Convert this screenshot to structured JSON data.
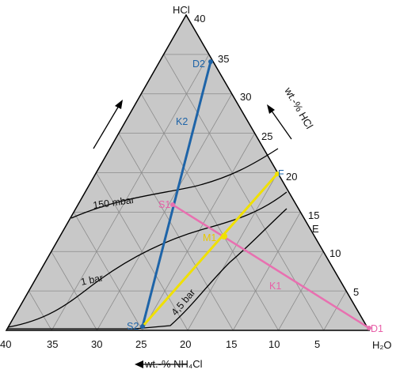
{
  "apex_label": "HCl",
  "corner_label": "H₂O",
  "hcl_axis_label": "wt.-% HCl",
  "nh4cl_axis_label": "wt.-% NH₄Cl",
  "hcl_ticks": [
    "40",
    "35",
    "30",
    "25",
    "20",
    "15",
    "10",
    "5"
  ],
  "nh4cl_ticks": [
    "40",
    "35",
    "30",
    "25",
    "20",
    "15",
    "10",
    "5"
  ],
  "points": {
    "D2": "D2",
    "S2": "S2",
    "F": "F",
    "S1": "S1",
    "M1": "M1",
    "D1": "D1",
    "E": "E"
  },
  "lines": {
    "K1": "K1",
    "K2": "K2"
  },
  "curves": {
    "c150": "150 mbar",
    "c1": "1 bar",
    "c45": "4,5 bar"
  },
  "colors": {
    "background": "#c8c8c8",
    "grid": "#8c8c8c",
    "blue": "#1e64a8",
    "yellow": "#f0e000",
    "pink": "#e870b0",
    "curve": "#000000"
  }
}
